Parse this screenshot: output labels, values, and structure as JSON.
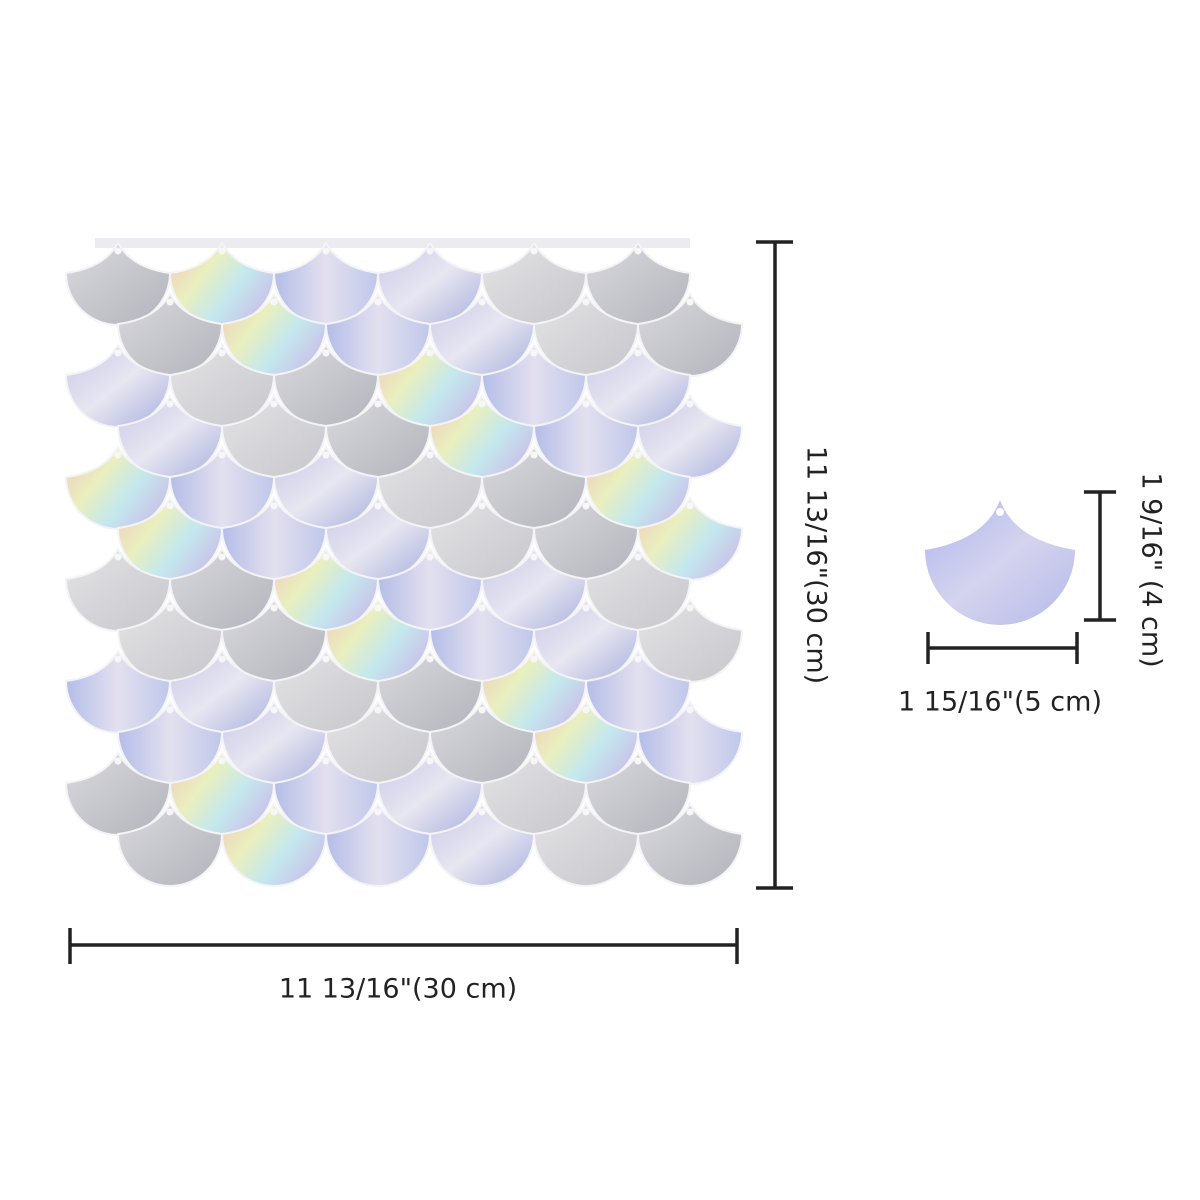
{
  "panel": {
    "width_label": "11 13/16\"(30 cm)",
    "height_label": "11 13/16\"(30 cm)"
  },
  "single_scale": {
    "height_label": "1 9/16\" (4 cm)",
    "width_label": "1 15/16\"(5 cm)"
  }
}
